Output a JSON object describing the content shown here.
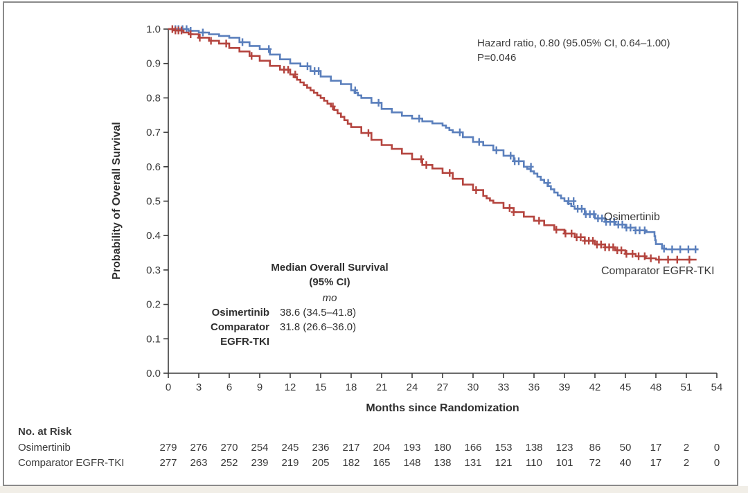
{
  "annotations": {
    "hazard_line1": "Hazard ratio, 0.80 (95.05% CI, 0.64–1.00)",
    "hazard_line2": "P=0.046",
    "median_title1": "Median Overall Survival",
    "median_title2": "(95% CI)",
    "median_unit": "mo",
    "median_rows": [
      {
        "label": "Osimertinib",
        "label2": "",
        "value": "38.6 (34.5–41.8)"
      },
      {
        "label": "Comparator",
        "label2": "EGFR-TKI",
        "value": "31.8 (26.6–36.0)"
      }
    ],
    "curve_label_blue": "Osimertinib",
    "curve_label_red": "Comparator EGFR-TKI"
  },
  "chart_data": {
    "type": "line",
    "subtype": "kaplan-meier-step",
    "title": "",
    "xlabel": "Months since Randomization",
    "ylabel": "Probability of Overall Survival",
    "xlim": [
      0,
      54
    ],
    "ylim": [
      0.0,
      1.0
    ],
    "x_ticks": [
      0,
      3,
      6,
      9,
      12,
      15,
      18,
      21,
      24,
      27,
      30,
      33,
      36,
      39,
      42,
      45,
      48,
      51,
      54
    ],
    "y_ticks": [
      0.0,
      0.1,
      0.2,
      0.3,
      0.4,
      0.5,
      0.6,
      0.7,
      0.8,
      0.9,
      1.0
    ],
    "grid": false,
    "legend_position": "curve-end-labels",
    "axis_color": "#3a3a3a",
    "series": [
      {
        "name": "Osimertinib",
        "color": "#5a7fbc",
        "points": [
          [
            0,
            1.0
          ],
          [
            1,
            1.0
          ],
          [
            2,
            0.995
          ],
          [
            3,
            0.99
          ],
          [
            4,
            0.985
          ],
          [
            5,
            0.98
          ],
          [
            6,
            0.975
          ],
          [
            7,
            0.962
          ],
          [
            8,
            0.951
          ],
          [
            9,
            0.942
          ],
          [
            10,
            0.926
          ],
          [
            11,
            0.912
          ],
          [
            12,
            0.9
          ],
          [
            13,
            0.892
          ],
          [
            14,
            0.878
          ],
          [
            15,
            0.862
          ],
          [
            16,
            0.85
          ],
          [
            17,
            0.84
          ],
          [
            18,
            0.822
          ],
          [
            19,
            0.8
          ],
          [
            20,
            0.786
          ],
          [
            21,
            0.768
          ],
          [
            22,
            0.758
          ],
          [
            23,
            0.748
          ],
          [
            24,
            0.74
          ],
          [
            25,
            0.732
          ],
          [
            26,
            0.726
          ],
          [
            27,
            0.72
          ],
          [
            28,
            0.7
          ],
          [
            29,
            0.686
          ],
          [
            30,
            0.672
          ],
          [
            31,
            0.662
          ],
          [
            32,
            0.648
          ],
          [
            33,
            0.632
          ],
          [
            34,
            0.616
          ],
          [
            35,
            0.6
          ],
          [
            36,
            0.58
          ],
          [
            37,
            0.553
          ],
          [
            38,
            0.525
          ],
          [
            39,
            0.5
          ],
          [
            40,
            0.478
          ],
          [
            41,
            0.462
          ],
          [
            42,
            0.45
          ],
          [
            43,
            0.44
          ],
          [
            44,
            0.432
          ],
          [
            45,
            0.423
          ],
          [
            46,
            0.415
          ],
          [
            47,
            0.41
          ],
          [
            47.8,
            0.41
          ],
          [
            48,
            0.375
          ],
          [
            48.6,
            0.362
          ],
          [
            49,
            0.36
          ],
          [
            52.2,
            0.36
          ]
        ],
        "censor_marks": [
          0.7,
          1.0,
          1.4,
          1.8,
          2.2,
          3.4,
          7.3,
          9.9,
          13.7,
          14.4,
          14.8,
          18.4,
          20.7,
          24.7,
          28.7,
          30.6,
          32.3,
          33.7,
          34.1,
          34.5,
          35.7,
          37.4,
          39.4,
          39.9,
          40.3,
          40.7,
          41.1,
          41.5,
          41.9,
          42.3,
          42.7,
          43.1,
          43.5,
          43.9,
          44.3,
          44.7,
          45.1,
          45.5,
          46.0,
          46.4,
          46.9,
          48.8,
          49.6,
          50.4,
          51.2,
          51.9
        ],
        "median": "38.6 (34.5–41.8)"
      },
      {
        "name": "Comparator EGFR-TKI",
        "color": "#b4443e",
        "points": [
          [
            0,
            1.0
          ],
          [
            0.7,
            0.996
          ],
          [
            1.5,
            0.99
          ],
          [
            2,
            0.985
          ],
          [
            3,
            0.975
          ],
          [
            4,
            0.966
          ],
          [
            5,
            0.958
          ],
          [
            6,
            0.945
          ],
          [
            7,
            0.935
          ],
          [
            8,
            0.922
          ],
          [
            9,
            0.908
          ],
          [
            10,
            0.893
          ],
          [
            11,
            0.882
          ],
          [
            12,
            0.868
          ],
          [
            13,
            0.845
          ],
          [
            14,
            0.822
          ],
          [
            15,
            0.8
          ],
          [
            16,
            0.775
          ],
          [
            17,
            0.745
          ],
          [
            18,
            0.715
          ],
          [
            19,
            0.698
          ],
          [
            20,
            0.678
          ],
          [
            21,
            0.663
          ],
          [
            22,
            0.652
          ],
          [
            23,
            0.638
          ],
          [
            24,
            0.622
          ],
          [
            25,
            0.605
          ],
          [
            26,
            0.595
          ],
          [
            27,
            0.582
          ],
          [
            28,
            0.565
          ],
          [
            29,
            0.548
          ],
          [
            30,
            0.532
          ],
          [
            31,
            0.515
          ],
          [
            32,
            0.495
          ],
          [
            33,
            0.48
          ],
          [
            34,
            0.468
          ],
          [
            35,
            0.455
          ],
          [
            36,
            0.443
          ],
          [
            37,
            0.43
          ],
          [
            38,
            0.417
          ],
          [
            39,
            0.406
          ],
          [
            40,
            0.395
          ],
          [
            41,
            0.385
          ],
          [
            42,
            0.374
          ],
          [
            43,
            0.366
          ],
          [
            44,
            0.357
          ],
          [
            45,
            0.347
          ],
          [
            46,
            0.34
          ],
          [
            47,
            0.334
          ],
          [
            48,
            0.33
          ],
          [
            52,
            0.33
          ]
        ],
        "censor_marks": [
          0.4,
          0.7,
          1.0,
          1.3,
          2.2,
          3.1,
          4.2,
          5.7,
          8.2,
          11.4,
          11.8,
          12.5,
          16.2,
          19.7,
          24.9,
          25.4,
          27.7,
          30.3,
          33.6,
          34.0,
          36.5,
          38.2,
          39.1,
          39.7,
          40.2,
          40.6,
          41.0,
          41.4,
          41.8,
          42.2,
          42.6,
          43.0,
          43.4,
          43.8,
          44.2,
          44.6,
          45.1,
          45.7,
          46.3,
          46.9,
          47.5,
          48.3,
          49.2,
          50.1,
          51.3
        ],
        "median": "31.8 (26.6–36.0)"
      }
    ]
  },
  "risk_table": {
    "title": "No. at Risk",
    "rows": [
      {
        "label": "Osimertinib",
        "values": [
          279,
          276,
          270,
          254,
          245,
          236,
          217,
          204,
          193,
          180,
          166,
          153,
          138,
          123,
          86,
          50,
          17,
          2,
          0
        ]
      },
      {
        "label": "Comparator EGFR-TKI",
        "values": [
          277,
          263,
          252,
          239,
          219,
          205,
          182,
          165,
          148,
          138,
          131,
          121,
          110,
          101,
          72,
          40,
          17,
          2,
          0
        ]
      }
    ]
  }
}
